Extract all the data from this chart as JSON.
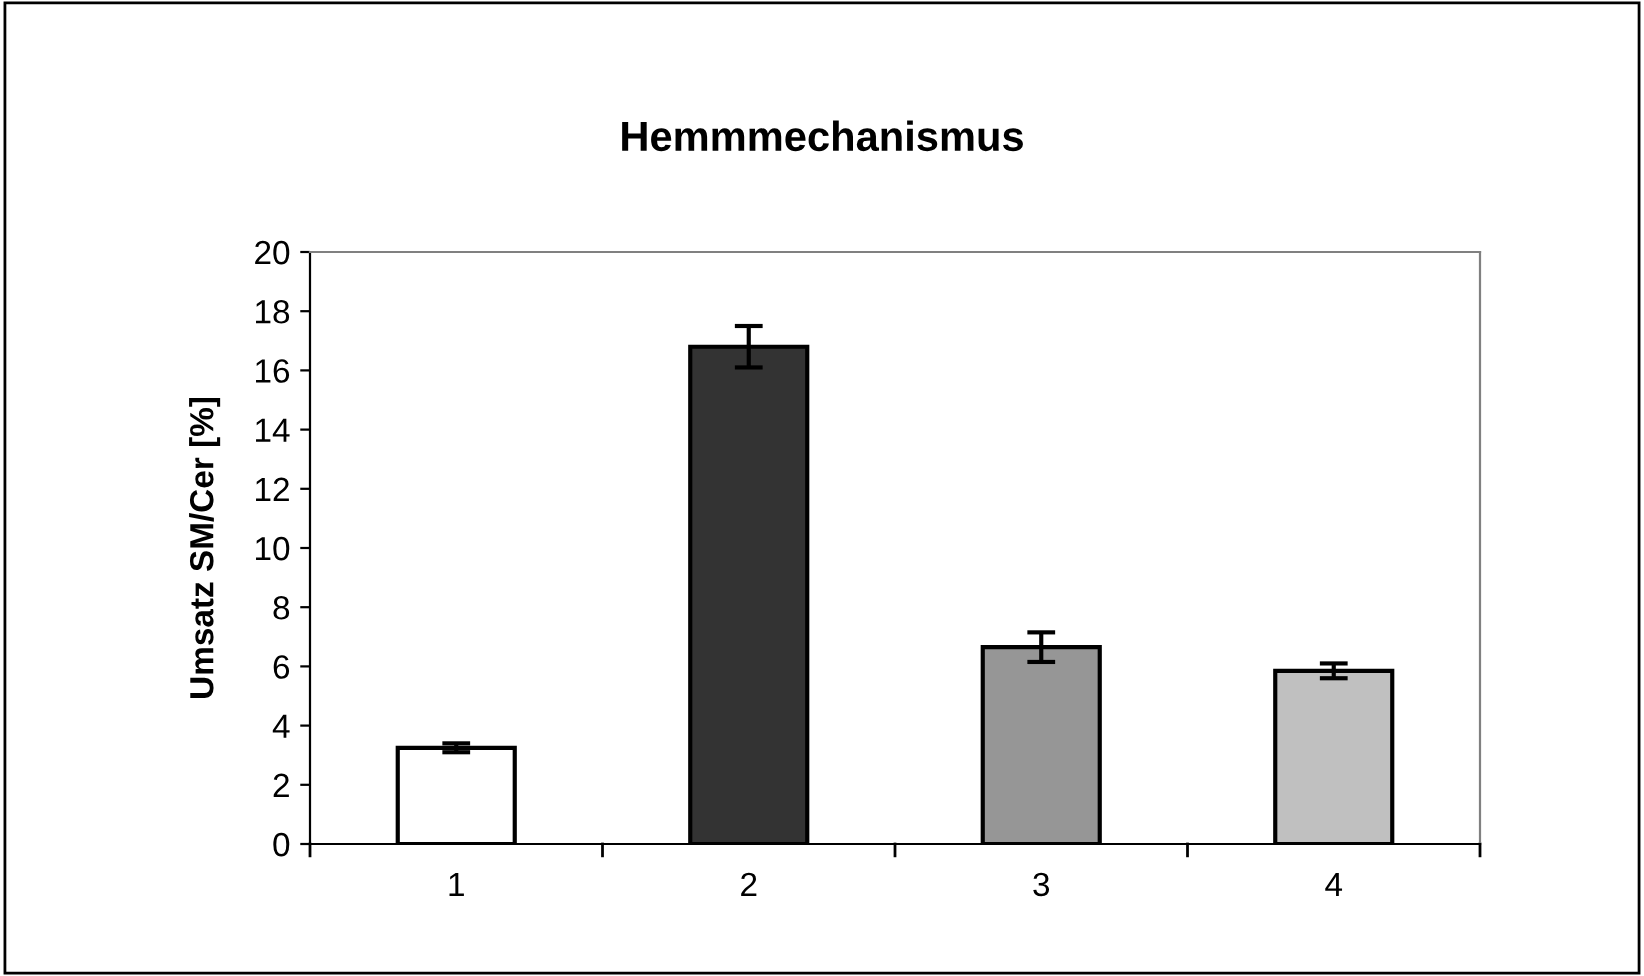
{
  "chart_data": {
    "type": "bar",
    "title": "Hemmmechanismus",
    "ylabel": "Umsatz SM/Cer [%]",
    "categories": [
      "1",
      "2",
      "3",
      "4"
    ],
    "values": [
      3.25,
      16.8,
      6.65,
      5.85
    ],
    "errors": [
      0.15,
      0.7,
      0.5,
      0.25
    ],
    "colors": [
      "#ffffff",
      "#333333",
      "#969696",
      "#c0c0c0"
    ],
    "ylim": [
      0,
      20
    ],
    "yticks": [
      0,
      2,
      4,
      6,
      8,
      10,
      12,
      14,
      16,
      18,
      20
    ],
    "grid": false,
    "legend": false
  }
}
